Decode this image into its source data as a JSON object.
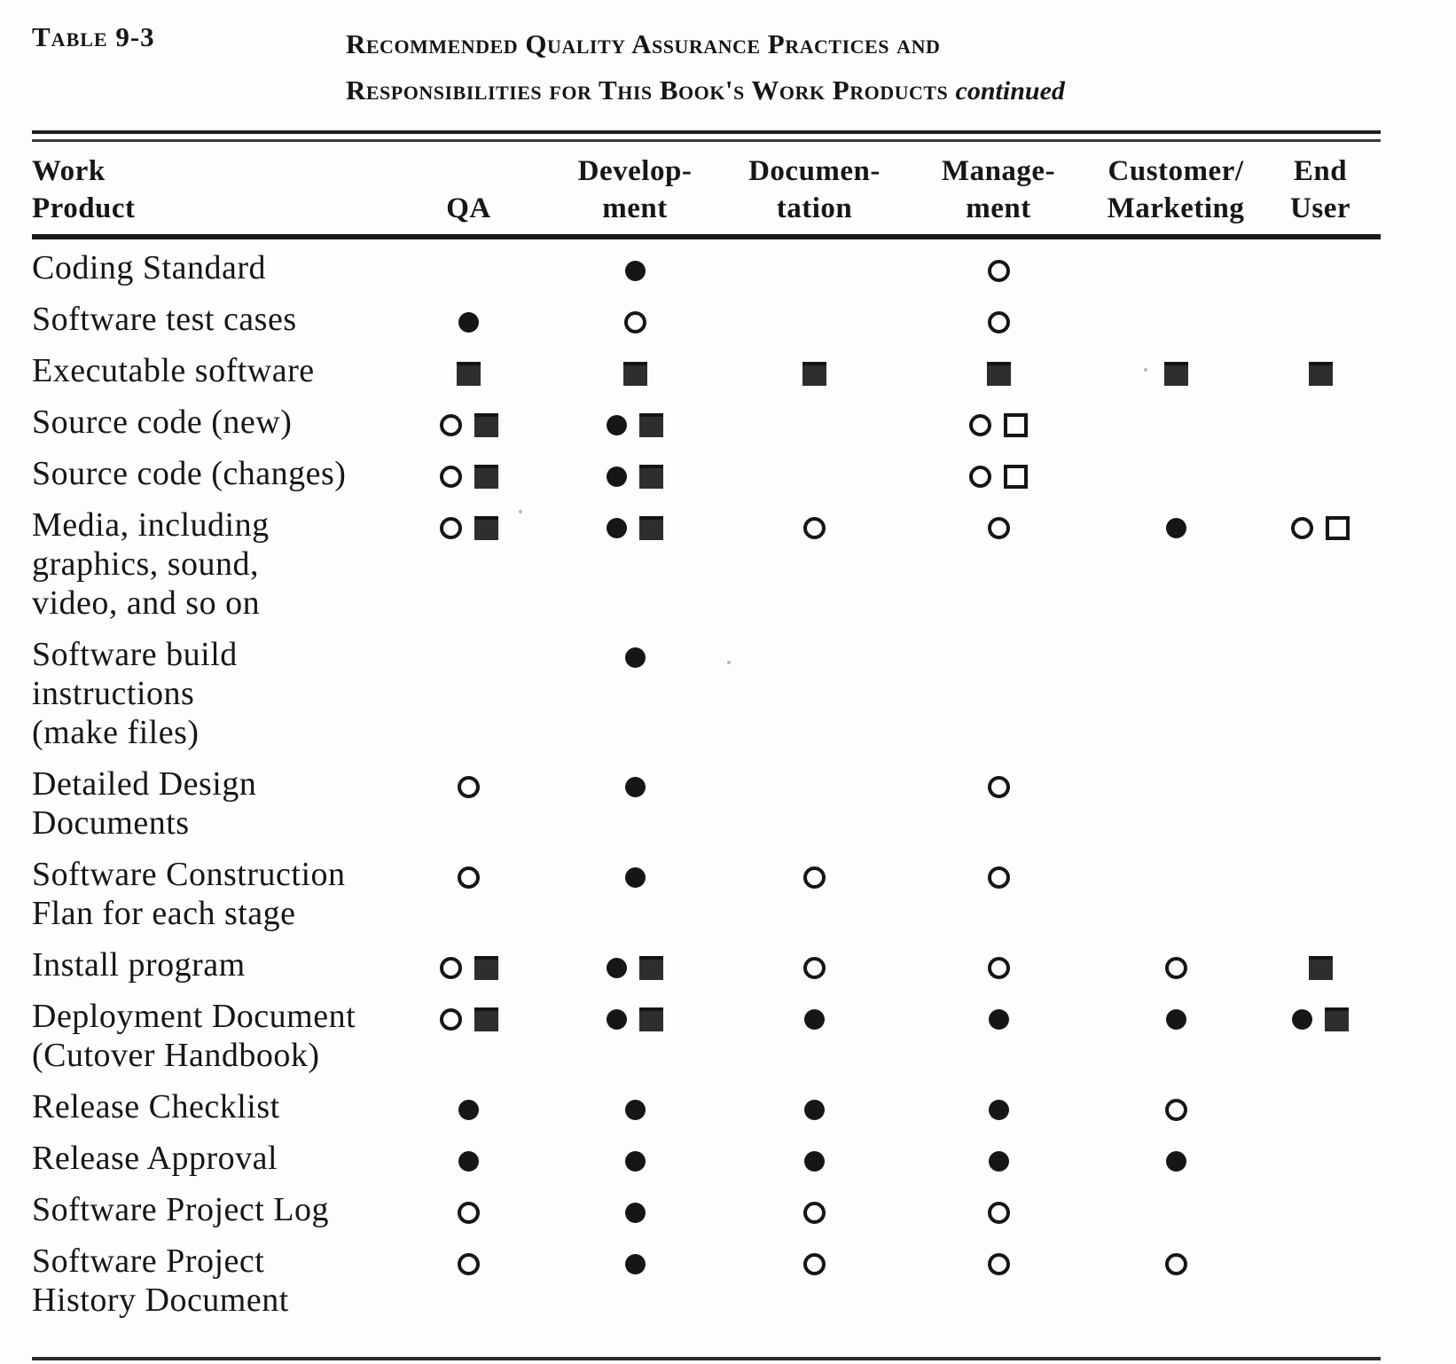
{
  "caption": {
    "table_number": "Table 9-3",
    "title_line1": "Recommended Quality Assurance Practices and",
    "title_line2": "Responsibilities for This Book's Work Products",
    "continued_note": "continued"
  },
  "colors": {
    "ink": "#161616",
    "square_fill": "#2e2e2e",
    "page_background": "#fdfdfb"
  },
  "symbol_legend": {
    "open-circle": "open-circle-icon",
    "filled-circle": "filled-circle-icon",
    "filled-square": "filled-square-icon",
    "open-square": "open-square-icon"
  },
  "table": {
    "columns": [
      {
        "id": "work-product",
        "lines": [
          "Work",
          "Product"
        ]
      },
      {
        "id": "qa",
        "lines": [
          "QA"
        ]
      },
      {
        "id": "development",
        "lines": [
          "Develop-",
          "ment"
        ]
      },
      {
        "id": "documentation",
        "lines": [
          "Documen-",
          "tation"
        ]
      },
      {
        "id": "management",
        "lines": [
          "Manage-",
          "ment"
        ]
      },
      {
        "id": "customer-marketing",
        "lines": [
          "Customer/",
          "Marketing"
        ]
      },
      {
        "id": "end-user",
        "lines": [
          "End",
          "User"
        ]
      }
    ],
    "rows": [
      {
        "label_lines": [
          "Coding Standard"
        ],
        "cells": [
          [],
          [
            "filled-circle"
          ],
          [],
          [
            "open-circle"
          ],
          [],
          []
        ]
      },
      {
        "label_lines": [
          "Software test cases"
        ],
        "cells": [
          [
            "filled-circle"
          ],
          [
            "open-circle"
          ],
          [],
          [
            "open-circle"
          ],
          [],
          []
        ]
      },
      {
        "label_lines": [
          "Executable software"
        ],
        "cells": [
          [
            "filled-square"
          ],
          [
            "filled-square"
          ],
          [
            "filled-square"
          ],
          [
            "filled-square"
          ],
          [
            "filled-square"
          ],
          [
            "filled-square"
          ]
        ]
      },
      {
        "label_lines": [
          "Source code (new)"
        ],
        "cells": [
          [
            "open-circle",
            "filled-square"
          ],
          [
            "filled-circle",
            "filled-square"
          ],
          [],
          [
            "open-circle",
            "open-square"
          ],
          [],
          []
        ]
      },
      {
        "label_lines": [
          "Source code (changes)"
        ],
        "cells": [
          [
            "open-circle",
            "filled-square"
          ],
          [
            "filled-circle",
            "filled-square"
          ],
          [],
          [
            "open-circle",
            "open-square"
          ],
          [],
          []
        ]
      },
      {
        "label_lines": [
          "Media, including",
          "graphics, sound,",
          "video, and so on"
        ],
        "cells": [
          [
            "open-circle",
            "filled-square"
          ],
          [
            "filled-circle",
            "filled-square"
          ],
          [
            "open-circle"
          ],
          [
            "open-circle"
          ],
          [
            "filled-circle"
          ],
          [
            "open-circle",
            "open-square"
          ]
        ]
      },
      {
        "label_lines": [
          "Software build",
          "instructions",
          "(make files)"
        ],
        "cells": [
          [],
          [
            "filled-circle"
          ],
          [],
          [],
          [],
          []
        ]
      },
      {
        "label_lines": [
          "Detailed Design",
          "Documents"
        ],
        "cells": [
          [
            "open-circle"
          ],
          [
            "filled-circle"
          ],
          [],
          [
            "open-circle"
          ],
          [],
          []
        ]
      },
      {
        "label_lines": [
          "Software Construction",
          "Flan for each stage"
        ],
        "cells": [
          [
            "open-circle"
          ],
          [
            "filled-circle"
          ],
          [
            "open-circle"
          ],
          [
            "open-circle"
          ],
          [],
          []
        ]
      },
      {
        "label_lines": [
          "Install program"
        ],
        "cells": [
          [
            "open-circle",
            "filled-square"
          ],
          [
            "filled-circle",
            "filled-square"
          ],
          [
            "open-circle"
          ],
          [
            "open-circle"
          ],
          [
            "open-circle"
          ],
          [
            "filled-square"
          ]
        ]
      },
      {
        "label_lines": [
          "Deployment Document",
          "(Cutover Handbook)"
        ],
        "cells": [
          [
            "open-circle",
            "filled-square"
          ],
          [
            "filled-circle",
            "filled-square"
          ],
          [
            "filled-circle"
          ],
          [
            "filled-circle"
          ],
          [
            "filled-circle"
          ],
          [
            "filled-circle",
            "filled-square"
          ]
        ]
      },
      {
        "label_lines": [
          "Release Checklist"
        ],
        "cells": [
          [
            "filled-circle"
          ],
          [
            "filled-circle"
          ],
          [
            "filled-circle"
          ],
          [
            "filled-circle"
          ],
          [
            "open-circle"
          ],
          []
        ]
      },
      {
        "label_lines": [
          "Release Approval"
        ],
        "cells": [
          [
            "filled-circle"
          ],
          [
            "filled-circle"
          ],
          [
            "filled-circle"
          ],
          [
            "filled-circle"
          ],
          [
            "filled-circle"
          ],
          []
        ]
      },
      {
        "label_lines": [
          "Software Project Log"
        ],
        "cells": [
          [
            "open-circle"
          ],
          [
            "filled-circle"
          ],
          [
            "open-circle"
          ],
          [
            "open-circle"
          ],
          [],
          []
        ]
      },
      {
        "label_lines": [
          "Software Project",
          "History Document"
        ],
        "cells": [
          [
            "open-circle"
          ],
          [
            "filled-circle"
          ],
          [
            "open-circle"
          ],
          [
            "open-circle"
          ],
          [
            "open-circle"
          ],
          []
        ]
      }
    ]
  }
}
